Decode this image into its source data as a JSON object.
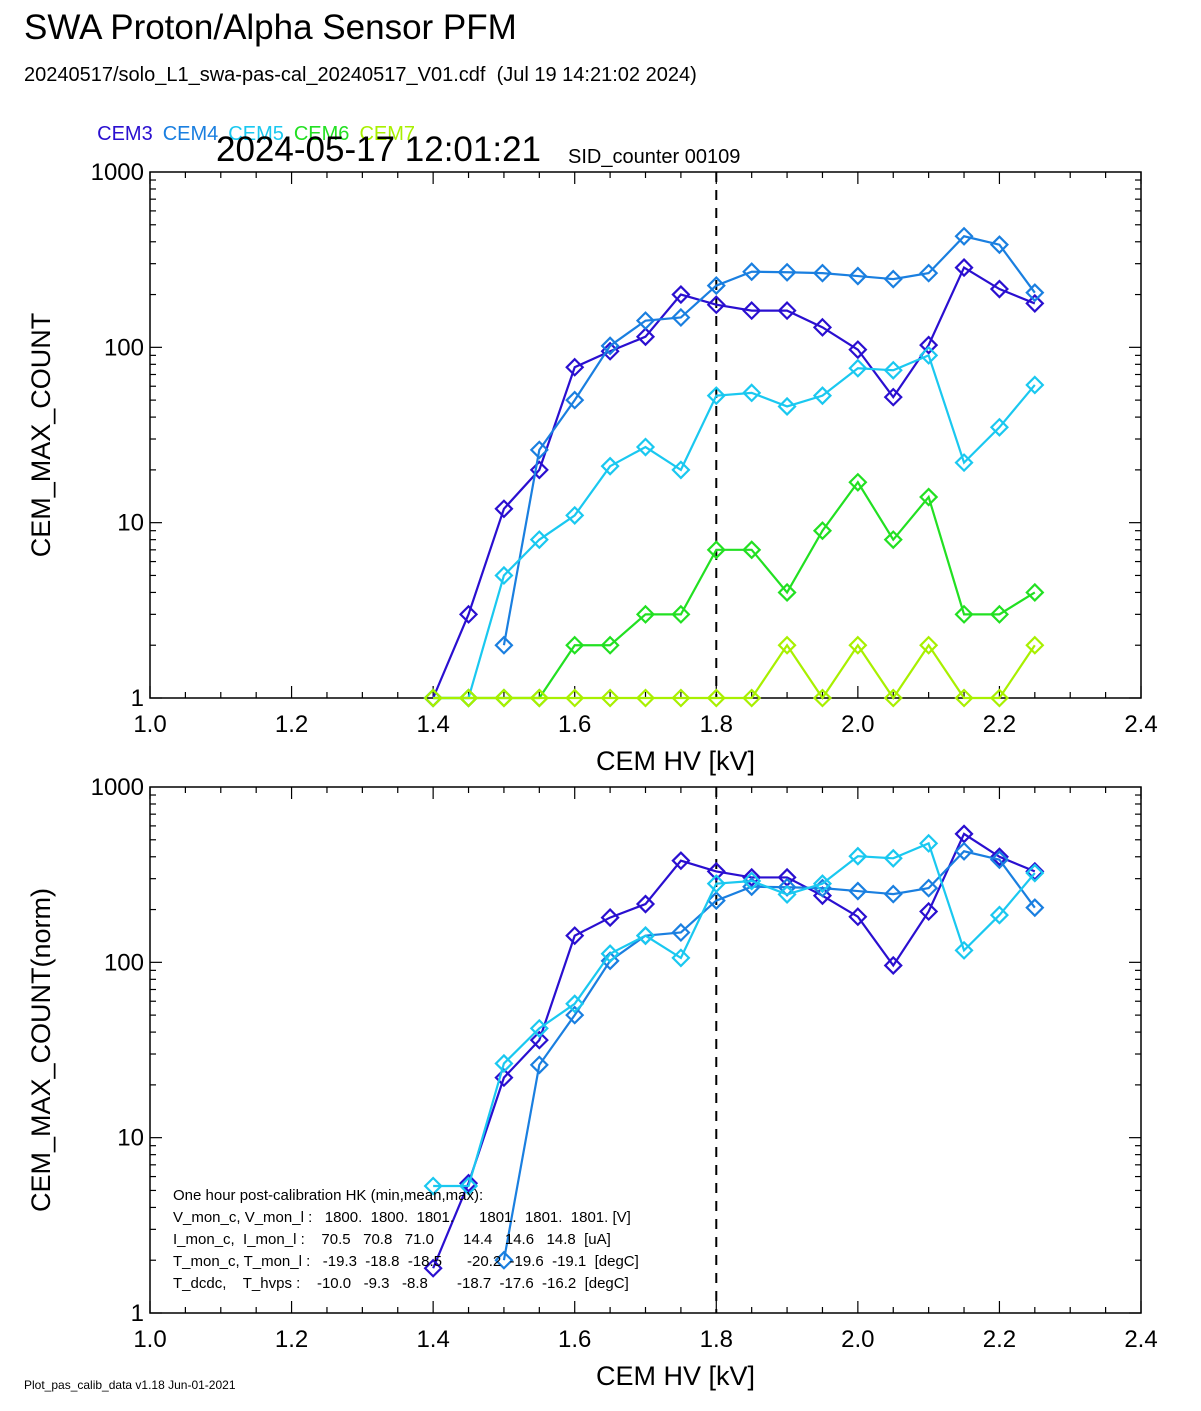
{
  "header": {
    "title": "SWA Proton/Alpha Sensor PFM",
    "file_line": "20240517/solo_L1_swa-pas-cal_20240517_V01.cdf  (Jul 19 14:21:02 2024)",
    "timestamp": "2024-05-17 12:01:21",
    "sid_counter": "SID_counter 00109"
  },
  "legend": [
    {
      "name": "CEM3",
      "color": "#2a0fd0"
    },
    {
      "name": "CEM4",
      "color": "#1a7fe0"
    },
    {
      "name": "CEM5",
      "color": "#1ac8f0"
    },
    {
      "name": "CEM6",
      "color": "#22e022"
    },
    {
      "name": "CEM7",
      "color": "#a8f000"
    }
  ],
  "footer": "Plot_pas_calib_data v1.18 Jun-01-2021",
  "hk": {
    "title": "One hour post-calibration HK (min,mean,max):",
    "lines": [
      "V_mon_c, V_mon_l :   1800.  1800.  1801.      1801.  1801.  1801. [V]",
      "I_mon_c,  I_mon_l :    70.5   70.8   71.0       14.4   14.6   14.8  [uA]",
      "T_mon_c, T_mon_l :   -19.3  -18.8  -18.5      -20.2  -19.6  -19.1  [degC]",
      "T_dcdc,    T_hvps :    -10.0   -9.3   -8.8       -18.7  -17.6  -16.2  [degC]"
    ]
  },
  "chart_data": [
    {
      "type": "line",
      "xlabel": "CEM HV [kV]",
      "ylabel": "CEM_MAX_COUNT",
      "xlim": [
        1.0,
        2.4
      ],
      "ylim": [
        1,
        1000
      ],
      "yscale": "log",
      "xticks": [
        "1.0",
        "1.2",
        "1.4",
        "1.6",
        "1.8",
        "2.0",
        "2.2",
        "2.4"
      ],
      "yticks": [
        "1",
        "10",
        "100",
        "1000"
      ],
      "vline": 1.8,
      "series": [
        {
          "name": "CEM3",
          "color": "#2a0fd0",
          "x": [
            1.4,
            1.45,
            1.5,
            1.55,
            1.6,
            1.65,
            1.7,
            1.75,
            1.8,
            1.85,
            1.9,
            1.95,
            2.0,
            2.05,
            2.1,
            2.15,
            2.2,
            2.25
          ],
          "y": [
            1,
            3,
            12,
            20,
            77,
            95,
            115,
            200,
            175,
            162,
            162,
            130,
            97,
            52,
            103,
            285,
            215,
            178
          ]
        },
        {
          "name": "CEM4",
          "color": "#1a7fe0",
          "x": [
            1.5,
            1.55,
            1.6,
            1.65,
            1.7,
            1.75,
            1.8,
            1.85,
            1.9,
            1.95,
            2.0,
            2.05,
            2.1,
            2.15,
            2.2,
            2.25
          ],
          "y": [
            2,
            26,
            50,
            102,
            142,
            148,
            225,
            270,
            268,
            265,
            255,
            245,
            265,
            430,
            385,
            205
          ]
        },
        {
          "name": "CEM5",
          "color": "#1ac8f0",
          "x": [
            1.4,
            1.45,
            1.5,
            1.55,
            1.6,
            1.65,
            1.7,
            1.75,
            1.8,
            1.85,
            1.9,
            1.95,
            2.0,
            2.05,
            2.1,
            2.15,
            2.2,
            2.25
          ],
          "y": [
            1,
            1,
            5,
            8,
            11,
            21,
            27,
            20,
            53,
            55,
            46,
            53,
            76,
            74,
            90,
            22,
            35,
            61
          ]
        },
        {
          "name": "CEM6",
          "color": "#22e022",
          "x": [
            1.4,
            1.45,
            1.5,
            1.55,
            1.6,
            1.65,
            1.7,
            1.75,
            1.8,
            1.85,
            1.9,
            1.95,
            2.0,
            2.05,
            2.1,
            2.15,
            2.2,
            2.25
          ],
          "y": [
            1,
            1,
            1,
            1,
            2,
            2,
            3,
            3,
            7,
            7,
            4,
            9,
            17,
            8,
            14,
            3,
            3,
            4
          ]
        },
        {
          "name": "CEM7",
          "color": "#a8f000",
          "x": [
            1.4,
            1.45,
            1.5,
            1.55,
            1.6,
            1.65,
            1.7,
            1.75,
            1.8,
            1.85,
            1.9,
            1.95,
            2.0,
            2.05,
            2.1,
            2.15,
            2.2,
            2.25
          ],
          "y": [
            1,
            1,
            1,
            1,
            1,
            1,
            1,
            1,
            1,
            1,
            2,
            1,
            2,
            1,
            2,
            1,
            1,
            2
          ]
        }
      ]
    },
    {
      "type": "line",
      "xlabel": "CEM HV [kV]",
      "ylabel": "CEM_MAX_COUNT(norm)",
      "xlim": [
        1.0,
        2.4
      ],
      "ylim": [
        1,
        1000
      ],
      "yscale": "log",
      "xticks": [
        "1.0",
        "1.2",
        "1.4",
        "1.6",
        "1.8",
        "2.0",
        "2.2",
        "2.4"
      ],
      "yticks": [
        "1",
        "10",
        "100",
        "1000"
      ],
      "vline": 1.8,
      "series": [
        {
          "name": "CEM3",
          "color": "#2a0fd0",
          "x": [
            1.4,
            1.45,
            1.5,
            1.55,
            1.6,
            1.65,
            1.7,
            1.75,
            1.8,
            1.85,
            1.9,
            1.95,
            2.0,
            2.05,
            2.1,
            2.15,
            2.2,
            2.25
          ],
          "y": [
            1.8,
            5.5,
            22,
            36,
            142,
            180,
            215,
            380,
            330,
            305,
            305,
            240,
            182,
            96,
            195,
            540,
            400,
            330
          ]
        },
        {
          "name": "CEM4",
          "color": "#1a7fe0",
          "x": [
            1.5,
            1.55,
            1.6,
            1.65,
            1.7,
            1.75,
            1.8,
            1.85,
            1.9,
            1.95,
            2.0,
            2.05,
            2.1,
            2.15,
            2.2,
            2.25
          ],
          "y": [
            2,
            26,
            50,
            102,
            142,
            148,
            225,
            270,
            268,
            265,
            255,
            245,
            265,
            430,
            385,
            205
          ]
        },
        {
          "name": "CEM5",
          "color": "#1ac8f0",
          "x": [
            1.4,
            1.45,
            1.5,
            1.55,
            1.6,
            1.65,
            1.7,
            1.75,
            1.8,
            1.85,
            1.9,
            1.95,
            2.0,
            2.05,
            2.1,
            2.15,
            2.2,
            2.25
          ],
          "y": [
            5.3,
            5.3,
            26.5,
            42,
            58,
            112,
            142,
            106,
            281,
            291,
            244,
            281,
            403,
            392,
            477,
            117,
            186,
            323
          ]
        }
      ]
    }
  ]
}
